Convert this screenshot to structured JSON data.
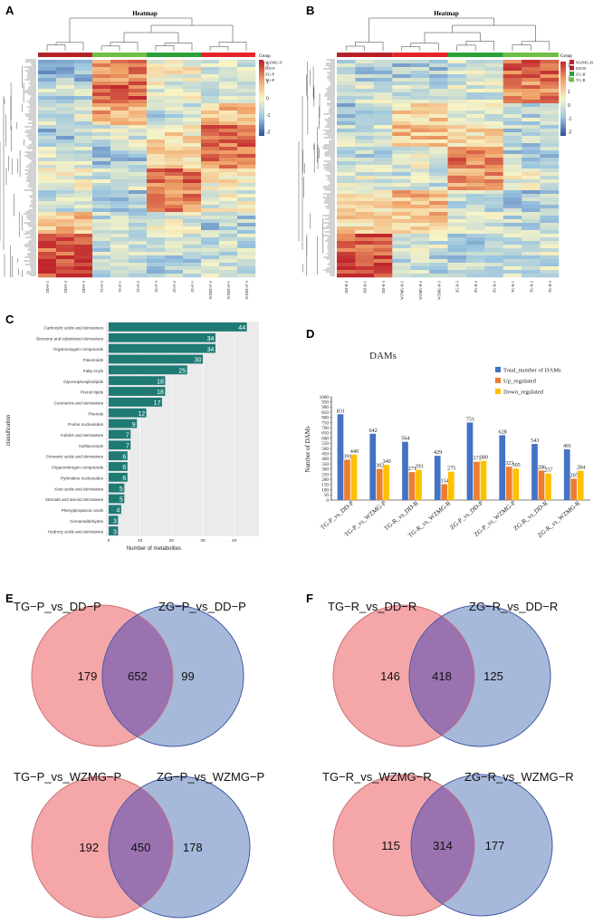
{
  "panel_labels": {
    "a": "A",
    "b": "B",
    "c": "C",
    "d": "D",
    "e": "E",
    "f": "F"
  },
  "heatmap_a": {
    "title": "Heatmap",
    "legend_title": "Group",
    "legend_items": [
      "WZMG-P",
      "DD-P",
      "ZG-P",
      "TG-P"
    ],
    "legend_colors": [
      "#c8202a",
      "#a3262b",
      "#2aa13a",
      "#6dbf45"
    ],
    "group_bar_colors": [
      "#b52328",
      "#6dbf45",
      "#2aa13a",
      "#e2262a"
    ],
    "colorbar_ticks": [
      "2",
      "1",
      "0",
      "-1",
      "-2"
    ],
    "columns": [
      "DD-P-1",
      "DD-P-2",
      "DD-P-3",
      "TG-P-3",
      "TG-P-1",
      "TG-P-2",
      "ZG-P-3",
      "ZG-P-2",
      "ZG-P-1",
      "WZMG-P-2",
      "WZMG-P-1",
      "WZMG-P-3"
    ]
  },
  "heatmap_b": {
    "title": "Heatmap",
    "legend_title": "Group",
    "legend_items": [
      "WZMG-R",
      "DD-R",
      "ZG-R",
      "TG-R"
    ],
    "legend_colors": [
      "#c8202a",
      "#a3262b",
      "#2aa13a",
      "#6dbf45"
    ],
    "group_bar_colors": [
      "#b52328",
      "#e2262a",
      "#2aa13a",
      "#6dbf45"
    ],
    "colorbar_ticks": [
      "3",
      "2",
      "1",
      "0",
      "-1",
      "-2"
    ],
    "columns": [
      "DD-R-2",
      "DD-R-1",
      "DD-R-3",
      "WZMG-R-1",
      "WZMG-R-2",
      "WZMG-R-3",
      "ZG-R-3",
      "ZG-R-2",
      "ZG-R-1",
      "TG-R-1",
      "TG-R-2",
      "TG-R-3"
    ]
  },
  "colors": {
    "bar_c": "#1f7a74",
    "bar_total": "#4472c4",
    "bar_up": "#ed7d31",
    "bar_down": "#ffc000",
    "venn_left": "#f4a6a8",
    "venn_right": "#a7b9db",
    "venn_overlap": "#9b72b0"
  },
  "chart_data": [
    {
      "type": "bar",
      "orientation": "horizontal",
      "title": "",
      "xlabel": "Number of metabolites",
      "ylabel": "classification",
      "xlim": [
        0,
        47
      ],
      "xticks": [
        "0",
        "10",
        "20",
        "30",
        "40"
      ],
      "categories": [
        "Carboxylic acids and derivatives",
        "Benzene and substituted derivatives",
        "Organooxygen compounds",
        "Flavonoids",
        "Fatty Acyls",
        "Glycerophospholipids",
        "Prenol lipids",
        "Coumarins and derivatives",
        "Phenols",
        "Purine nucleosides",
        "Indoles and derivatives",
        "Isoflavonoids",
        "Cinnamic acids and derivatives",
        "Organonitrogen compounds",
        "Pyrimidine nucleosides",
        "Keto acids and derivatives",
        "Steroids and steroid derivatives",
        "Phenylpropanoic acids",
        "Cinnamaldehydes",
        "Hydroxy acids and derivatives"
      ],
      "values": [
        44,
        34,
        34,
        30,
        25,
        18,
        18,
        17,
        12,
        9,
        7,
        7,
        6,
        6,
        6,
        5,
        5,
        4,
        3,
        3
      ],
      "value_labels": [
        "44",
        "34",
        "34",
        "30",
        "25",
        "18",
        "18",
        "17",
        "12",
        "9",
        "7",
        "7",
        "6",
        "6",
        "6",
        "5",
        "5",
        "4",
        "3",
        "3"
      ]
    },
    {
      "type": "bar",
      "title": "DAMs",
      "xlabel": "",
      "ylabel": "Number of DAMs",
      "ylim": [
        0,
        1000
      ],
      "yticks": [
        "0",
        "50",
        "100",
        "150",
        "200",
        "250",
        "300",
        "350",
        "400",
        "450",
        "500",
        "550",
        "600",
        "650",
        "700",
        "750",
        "800",
        "850",
        "900",
        "950",
        "1000"
      ],
      "categories": [
        "TG-P_vs_DD-P",
        "TG-P_vs_WZMG-P",
        "TG-R_vs_DD-R",
        "TG-R_vs_WZMG-R",
        "ZG-P_vs_DD-P",
        "ZG-P_vs_WZMG-P",
        "ZG-R_vs_DD-R",
        "ZG-R_vs_WZMG-R"
      ],
      "series": [
        {
          "name": "Total_number of DAMs",
          "values": [
            831,
            642,
            564,
            429,
            751,
            628,
            543,
            491
          ],
          "labels": [
            "831",
            "642",
            "564",
            "429",
            "751",
            "628",
            "543",
            "491"
          ]
        },
        {
          "name": "Up_regulated",
          "values": [
            391,
            302,
            271,
            154,
            371,
            323,
            286,
            207
          ],
          "labels": [
            "391",
            "302",
            "271",
            "154",
            "371",
            "323",
            "286",
            "207"
          ]
        },
        {
          "name": "Down_regulated",
          "values": [
            440,
            340,
            293,
            275,
            380,
            305,
            257,
            284
          ],
          "labels": [
            "440",
            "340",
            "293",
            "275",
            "380",
            "305",
            "257",
            "284"
          ]
        }
      ]
    }
  ],
  "venns": [
    {
      "left_label": "TG−P_vs_DD−P",
      "right_label": "ZG−P_vs_DD−P",
      "left_only": "179",
      "both": "652",
      "right_only": "99"
    },
    {
      "left_label": "TG−P_vs_WZMG−P",
      "right_label": "ZG−P_vs_WZMG−P",
      "left_only": "192",
      "both": "450",
      "right_only": "178"
    },
    {
      "left_label": "TG−R_vs_DD−R",
      "right_label": "ZG−R_vs_DD−R",
      "left_only": "146",
      "both": "418",
      "right_only": "125"
    },
    {
      "left_label": "TG−R_vs_WZMG−R",
      "right_label": "ZG−R_vs_WZMG−R",
      "left_only": "115",
      "both": "314",
      "right_only": "177"
    }
  ]
}
